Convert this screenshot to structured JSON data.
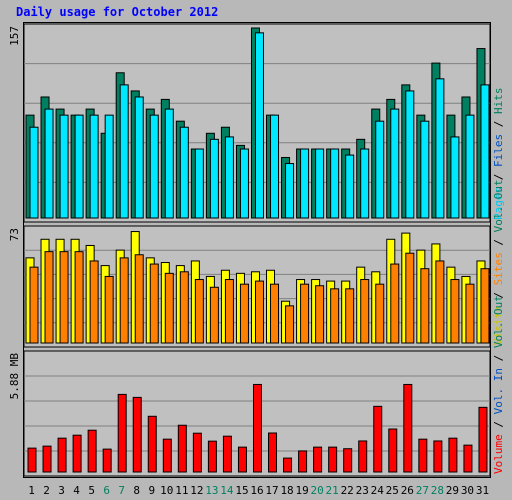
{
  "title": "Daily usage for October 2012",
  "colors": {
    "background": "#b8b8b8",
    "panel": "#c0c0c0",
    "hits": "#008060",
    "files": "#00c8f0",
    "pages": "#00e8ff",
    "visits": "#ffff00",
    "sites": "#ff8000",
    "kbytes": "#ff0000",
    "weekend_tick": "#008060",
    "title": "#0000ff"
  },
  "panels": {
    "top_max_label": "157",
    "mid_max_label": "73",
    "bottom_max_label": "5.88 MB"
  },
  "legend": {
    "top": [
      {
        "text": "Pages",
        "color": "#00c8f0"
      },
      {
        "text": " / ",
        "color": "#000000"
      },
      {
        "text": "Files",
        "color": "#0050c0"
      },
      {
        "text": " / ",
        "color": "#000000"
      },
      {
        "text": "Hits",
        "color": "#008060"
      }
    ],
    "mid": [
      {
        "text": "Visits",
        "color": "#c8c800"
      },
      {
        "text": " / ",
        "color": "#000000"
      },
      {
        "text": "Sites",
        "color": "#ff8000"
      },
      {
        "text": " / ",
        "color": "#000000"
      },
      {
        "text": "Vol. Out",
        "color": "#008060"
      }
    ],
    "bottom": [
      {
        "text": "Volume",
        "color": "#ff0000"
      },
      {
        "text": " / ",
        "color": "#000000"
      },
      {
        "text": "Vol. In",
        "color": "#0050c0"
      },
      {
        "text": " / ",
        "color": "#000000"
      },
      {
        "text": "Vol. Out",
        "color": "#008060"
      }
    ]
  },
  "chart_data": {
    "type": "bar",
    "title": "Daily usage for October 2012",
    "categories": [
      "1",
      "2",
      "3",
      "4",
      "5",
      "6",
      "7",
      "8",
      "9",
      "10",
      "11",
      "12",
      "13",
      "14",
      "15",
      "16",
      "17",
      "18",
      "19",
      "20",
      "21",
      "22",
      "23",
      "24",
      "25",
      "26",
      "27",
      "28",
      "29",
      "30",
      "31"
    ],
    "weekend_days": [
      "6",
      "7",
      "13",
      "14",
      "20",
      "21",
      "27",
      "28"
    ],
    "top_panel": {
      "ymax": 157,
      "series": [
        {
          "name": "Hits",
          "values": [
            85,
            100,
            90,
            85,
            90,
            70,
            120,
            105,
            90,
            98,
            80,
            57,
            70,
            75,
            60,
            157,
            85,
            50,
            57,
            57,
            57,
            57,
            65,
            90,
            98,
            110,
            85,
            128,
            85,
            100,
            140
          ]
        },
        {
          "name": "Files",
          "values": [
            75,
            90,
            85,
            85,
            85,
            85,
            110,
            100,
            85,
            90,
            75,
            57,
            65,
            67,
            57,
            153,
            85,
            45,
            57,
            57,
            57,
            52,
            57,
            80,
            90,
            105,
            80,
            115,
            67,
            85,
            110
          ]
        },
        {
          "name": "Pages",
          "values": [
            75,
            90,
            85,
            85,
            85,
            85,
            110,
            100,
            85,
            90,
            75,
            57,
            65,
            67,
            57,
            153,
            85,
            45,
            57,
            57,
            57,
            52,
            57,
            80,
            90,
            105,
            80,
            115,
            67,
            85,
            110
          ]
        }
      ]
    },
    "mid_panel": {
      "ymax": 73,
      "series": [
        {
          "name": "Visits",
          "values": [
            55,
            67,
            67,
            67,
            63,
            50,
            60,
            72,
            55,
            52,
            50,
            53,
            43,
            47,
            45,
            46,
            47,
            27,
            41,
            41,
            40,
            40,
            49,
            46,
            67,
            71,
            60,
            64,
            49,
            43,
            53
          ]
        },
        {
          "name": "Sites",
          "values": [
            49,
            59,
            59,
            59,
            53,
            43,
            55,
            57,
            51,
            45,
            46,
            41,
            36,
            41,
            38,
            40,
            38,
            24,
            38,
            37,
            35,
            35,
            41,
            38,
            51,
            58,
            48,
            53,
            41,
            38,
            48
          ]
        }
      ]
    },
    "bottom_panel": {
      "ymax": 5.88,
      "unit": "MB",
      "series": [
        {
          "name": "Volume",
          "values": [
            1.2,
            1.3,
            1.7,
            1.85,
            2.1,
            1.15,
            3.9,
            3.75,
            2.8,
            1.65,
            2.35,
            1.95,
            1.55,
            1.8,
            1.25,
            4.4,
            1.96,
            0.7,
            1.06,
            1.25,
            1.25,
            1.17,
            1.56,
            3.3,
            2.16,
            4.4,
            1.65,
            1.56,
            1.7,
            1.35,
            3.25
          ]
        }
      ]
    }
  }
}
